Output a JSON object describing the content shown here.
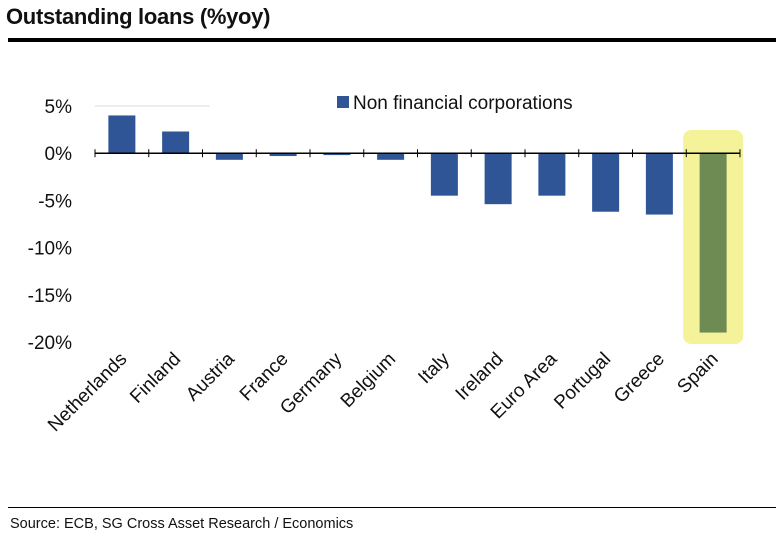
{
  "title": "Outstanding loans (%yoy)",
  "source": "Source: ECB, SG Cross Asset Research / Economics",
  "colors": {
    "bar": "#2f5597",
    "highlight_bar": "#6f8b54",
    "highlight_glow": "#f4f39a",
    "axis": "#000000",
    "gridline": "#d9d9d9"
  },
  "chart_data": {
    "type": "bar",
    "title": "Outstanding loans (%yoy)",
    "xlabel": "",
    "ylabel": "",
    "ylim": [
      -20,
      5
    ],
    "yticks": [
      5,
      0,
      -5,
      -10,
      -15,
      -20
    ],
    "ytick_labels": [
      "5%",
      "0%",
      "-5%",
      "-10%",
      "-15%",
      "-20%"
    ],
    "grid": false,
    "legend": {
      "position": "top-right",
      "entries": [
        "Non financial corporations"
      ]
    },
    "categories": [
      "Netherlands",
      "Finland",
      "Austria",
      "France",
      "Germany",
      "Belgium",
      "Italy",
      "Ireland",
      "Euro Area",
      "Portugal",
      "Greece",
      "Spain"
    ],
    "series": [
      {
        "name": "Non financial corporations",
        "values": [
          4.0,
          2.3,
          -0.7,
          -0.3,
          -0.2,
          -0.7,
          -4.5,
          -5.4,
          -4.5,
          -6.2,
          -6.5,
          -19.0
        ]
      }
    ],
    "highlight": "Spain"
  }
}
